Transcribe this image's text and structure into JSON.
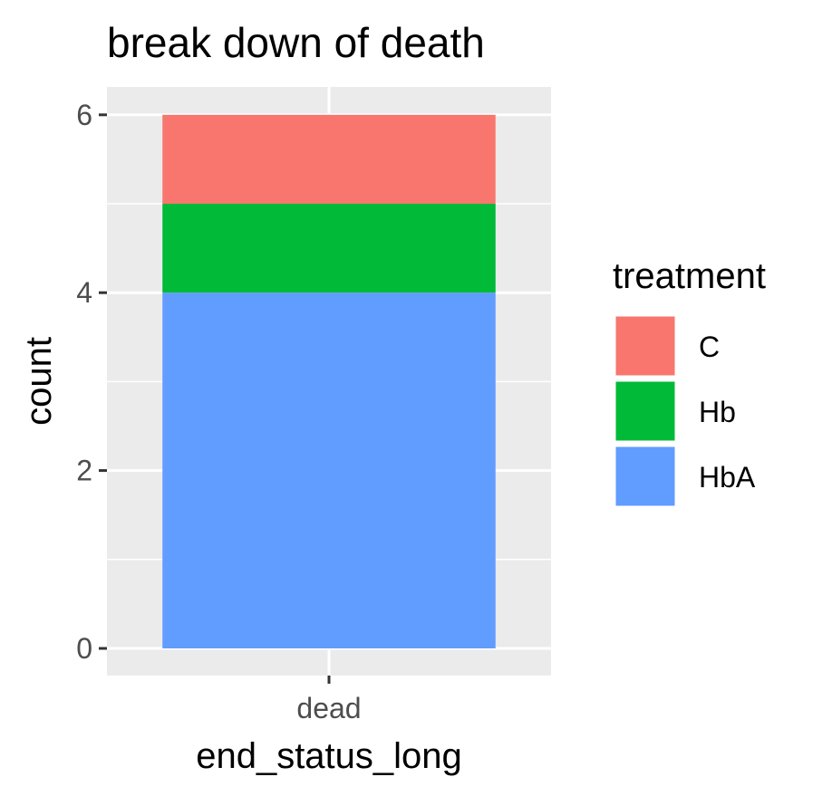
{
  "chart_data": {
    "type": "bar",
    "stacked": true,
    "title": "break down of death",
    "xlabel": "end_status_long",
    "ylabel": "count",
    "categories": [
      "dead"
    ],
    "ylim": [
      0,
      6.15
    ],
    "yticks": [
      0,
      2,
      4,
      6
    ],
    "grid": true,
    "legend_title": "treatment",
    "legend_position": "right",
    "series": [
      {
        "name": "C",
        "values": [
          1
        ],
        "color": "#F8766D"
      },
      {
        "name": "Hb",
        "values": [
          1
        ],
        "color": "#00BA38"
      },
      {
        "name": "HbA",
        "values": [
          4
        ],
        "color": "#619CFF"
      }
    ],
    "stack_order_bottom_to_top": [
      "HbA",
      "Hb",
      "C"
    ],
    "panel_color": "#EBEBEB",
    "grid_color": "#FFFFFF"
  }
}
